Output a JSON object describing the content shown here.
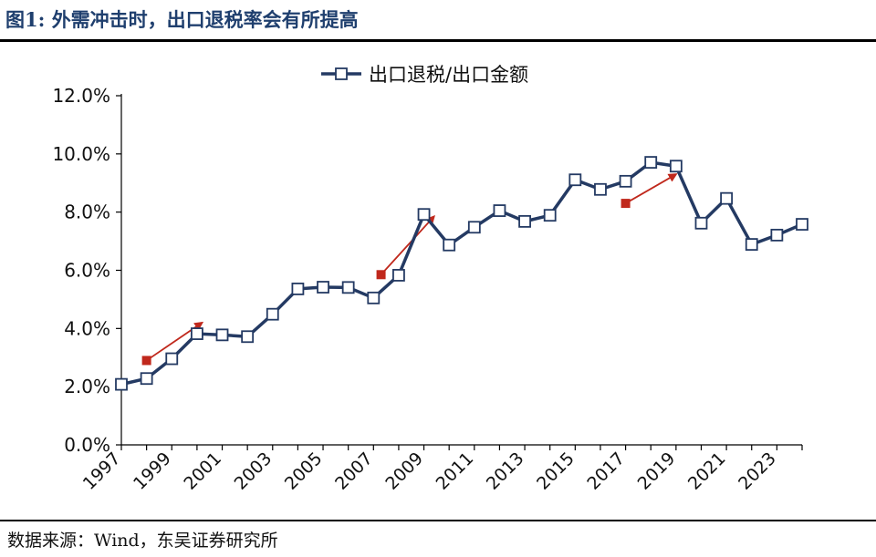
{
  "figure": {
    "label": "图1:",
    "title": "外需冲击时，出口退税率会有所提高",
    "source": "数据来源：Wind，东吴证券研究所"
  },
  "colors": {
    "line": "#243a63",
    "marker_fill": "#ffffff",
    "arrow": "#c0281c",
    "title": "#1f3f6e"
  },
  "chart_data": {
    "type": "line",
    "legend_position": "top-center",
    "grid": false,
    "x": [
      1997,
      1998,
      1999,
      2000,
      2001,
      2002,
      2003,
      2004,
      2005,
      2006,
      2007,
      2008,
      2009,
      2010,
      2011,
      2012,
      2013,
      2014,
      2015,
      2016,
      2017,
      2018,
      2019,
      2020,
      2021,
      2022,
      2023,
      2024
    ],
    "x_tick_labels": [
      "1997",
      "1999",
      "2001",
      "2003",
      "2005",
      "2007",
      "2009",
      "2011",
      "2013",
      "2015",
      "2017",
      "2019",
      "2021",
      "2023"
    ],
    "x_tick_values": [
      1997,
      1999,
      2001,
      2003,
      2005,
      2007,
      2009,
      2011,
      2013,
      2015,
      2017,
      2019,
      2021,
      2023
    ],
    "xlim": [
      1997,
      2024
    ],
    "ylim": [
      0,
      12
    ],
    "y_tick_values": [
      0,
      2,
      4,
      6,
      8,
      10,
      12
    ],
    "y_tick_labels": [
      "0.0%",
      "2.0%",
      "4.0%",
      "6.0%",
      "8.0%",
      "10.0%",
      "12.0%"
    ],
    "series": [
      {
        "name": "出口退税/出口金额",
        "values": [
          2.08,
          2.28,
          2.96,
          3.82,
          3.78,
          3.72,
          4.49,
          5.36,
          5.42,
          5.41,
          5.05,
          5.83,
          7.92,
          6.87,
          7.48,
          8.05,
          7.68,
          7.89,
          9.11,
          8.78,
          9.06,
          9.71,
          9.58,
          7.62,
          8.47,
          6.89,
          7.21,
          7.58
        ]
      }
    ],
    "annotations": [
      {
        "type": "arrow",
        "from": [
          1998.0,
          2.9
        ],
        "to": [
          2000.2,
          4.2
        ]
      },
      {
        "type": "arrow",
        "from": [
          2007.3,
          5.85
        ],
        "to": [
          2009.4,
          7.85
        ]
      },
      {
        "type": "arrow",
        "from": [
          2017.0,
          8.3
        ],
        "to": [
          2019.0,
          9.3
        ]
      }
    ]
  }
}
